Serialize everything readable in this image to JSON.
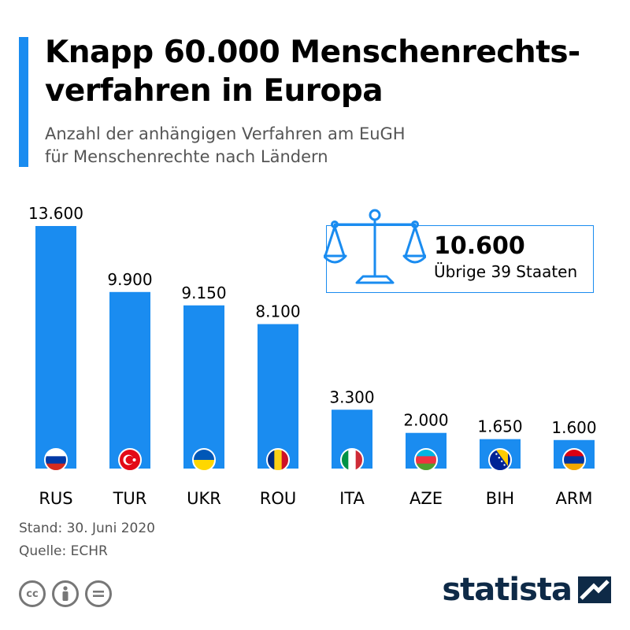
{
  "header": {
    "title": "Knapp 60.000 Menschenrechts-verfahren in Europa",
    "subtitle_line1": "Anzahl der anhängigen Verfahren am EuGH",
    "subtitle_line2": "für Menschenrechte nach Ländern"
  },
  "callout": {
    "value": "10.600",
    "label": "Übrige 39 Staaten",
    "icon": "scales-of-justice-icon"
  },
  "chart_data": {
    "type": "bar",
    "categories": [
      "RUS",
      "TUR",
      "UKR",
      "ROU",
      "ITA",
      "AZE",
      "BIH",
      "ARM"
    ],
    "values": [
      13600,
      9900,
      9150,
      8100,
      3300,
      2000,
      1650,
      1600
    ],
    "value_labels": [
      "13.600",
      "9.900",
      "9.150",
      "8.100",
      "3.300",
      "2.000",
      "1.650",
      "1.600"
    ],
    "flags": [
      "russia-flag-icon",
      "turkey-flag-icon",
      "ukraine-flag-icon",
      "romania-flag-icon",
      "italy-flag-icon",
      "azerbaijan-flag-icon",
      "bosnia-flag-icon",
      "armenia-flag-icon"
    ],
    "title": "",
    "xlabel": "",
    "ylabel": "",
    "ylim": [
      0,
      13600
    ],
    "grid": false,
    "legend": "none",
    "bar_color": "#1a8cf0"
  },
  "footer": {
    "date_note": "Stand: 30. Juni 2020",
    "source_note": "Quelle: ECHR",
    "license_icons": [
      "cc-icon",
      "by-icon",
      "nd-icon"
    ],
    "brand": "statista"
  },
  "colors": {
    "accent": "#1a8cf0",
    "brand": "#0e2a47",
    "subtitle": "#555555"
  }
}
